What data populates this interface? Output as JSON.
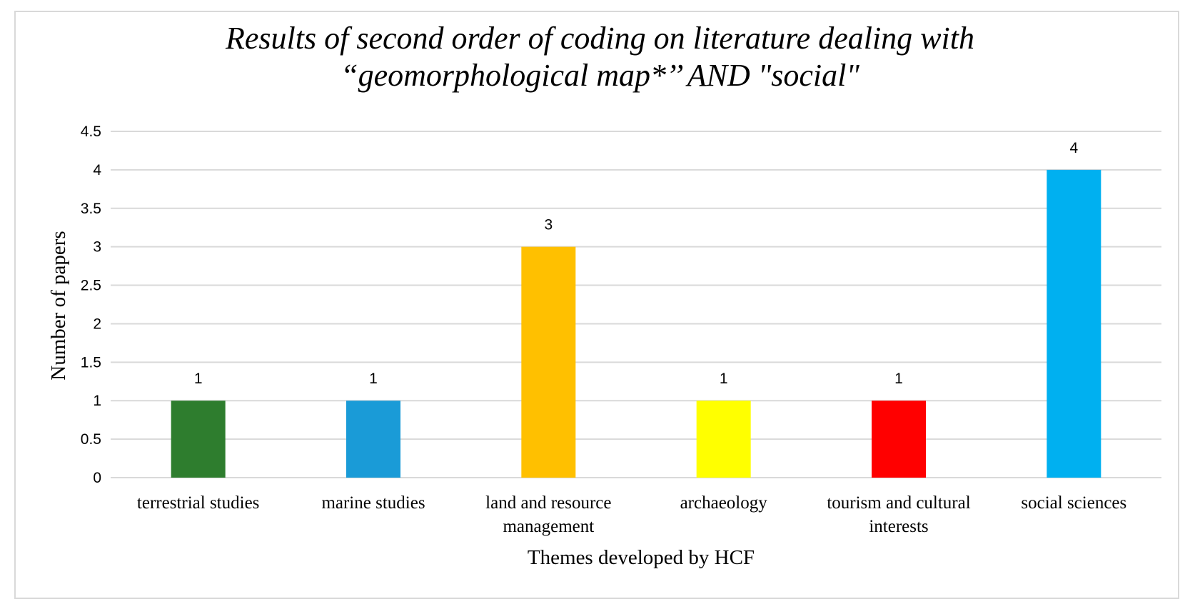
{
  "chart_data": {
    "type": "bar",
    "title_lines": [
      "Results of second order of coding on literature dealing with",
      "“geomorphological map*’’ AND \"social\""
    ],
    "xlabel": "Themes developed by HCF",
    "ylabel": "Number of papers",
    "categories": [
      "terrestrial studies",
      "marine studies",
      "land and resource management",
      "archaeology",
      "tourism and cultural interests",
      "social sciences"
    ],
    "category_lines": [
      [
        "terrestrial studies"
      ],
      [
        "marine studies"
      ],
      [
        "land and resource",
        "management"
      ],
      [
        "archaeology"
      ],
      [
        "tourism and cultural",
        "interests"
      ],
      [
        "social sciences"
      ]
    ],
    "values": [
      1,
      1,
      3,
      1,
      1,
      4
    ],
    "data_labels": [
      "1",
      "1",
      "3",
      "1",
      "1",
      "4"
    ],
    "colors": [
      "#2e7d2e",
      "#1a9bd7",
      "#ffc000",
      "#ffff00",
      "#ff0000",
      "#00b0f0"
    ],
    "ylim": [
      0,
      4.5
    ],
    "yticks": [
      "0",
      "0.5",
      "1",
      "1.5",
      "2",
      "2.5",
      "3",
      "3.5",
      "4",
      "4.5"
    ],
    "grid": true,
    "legend": "none",
    "gridline_color": "#d9d9d9"
  }
}
